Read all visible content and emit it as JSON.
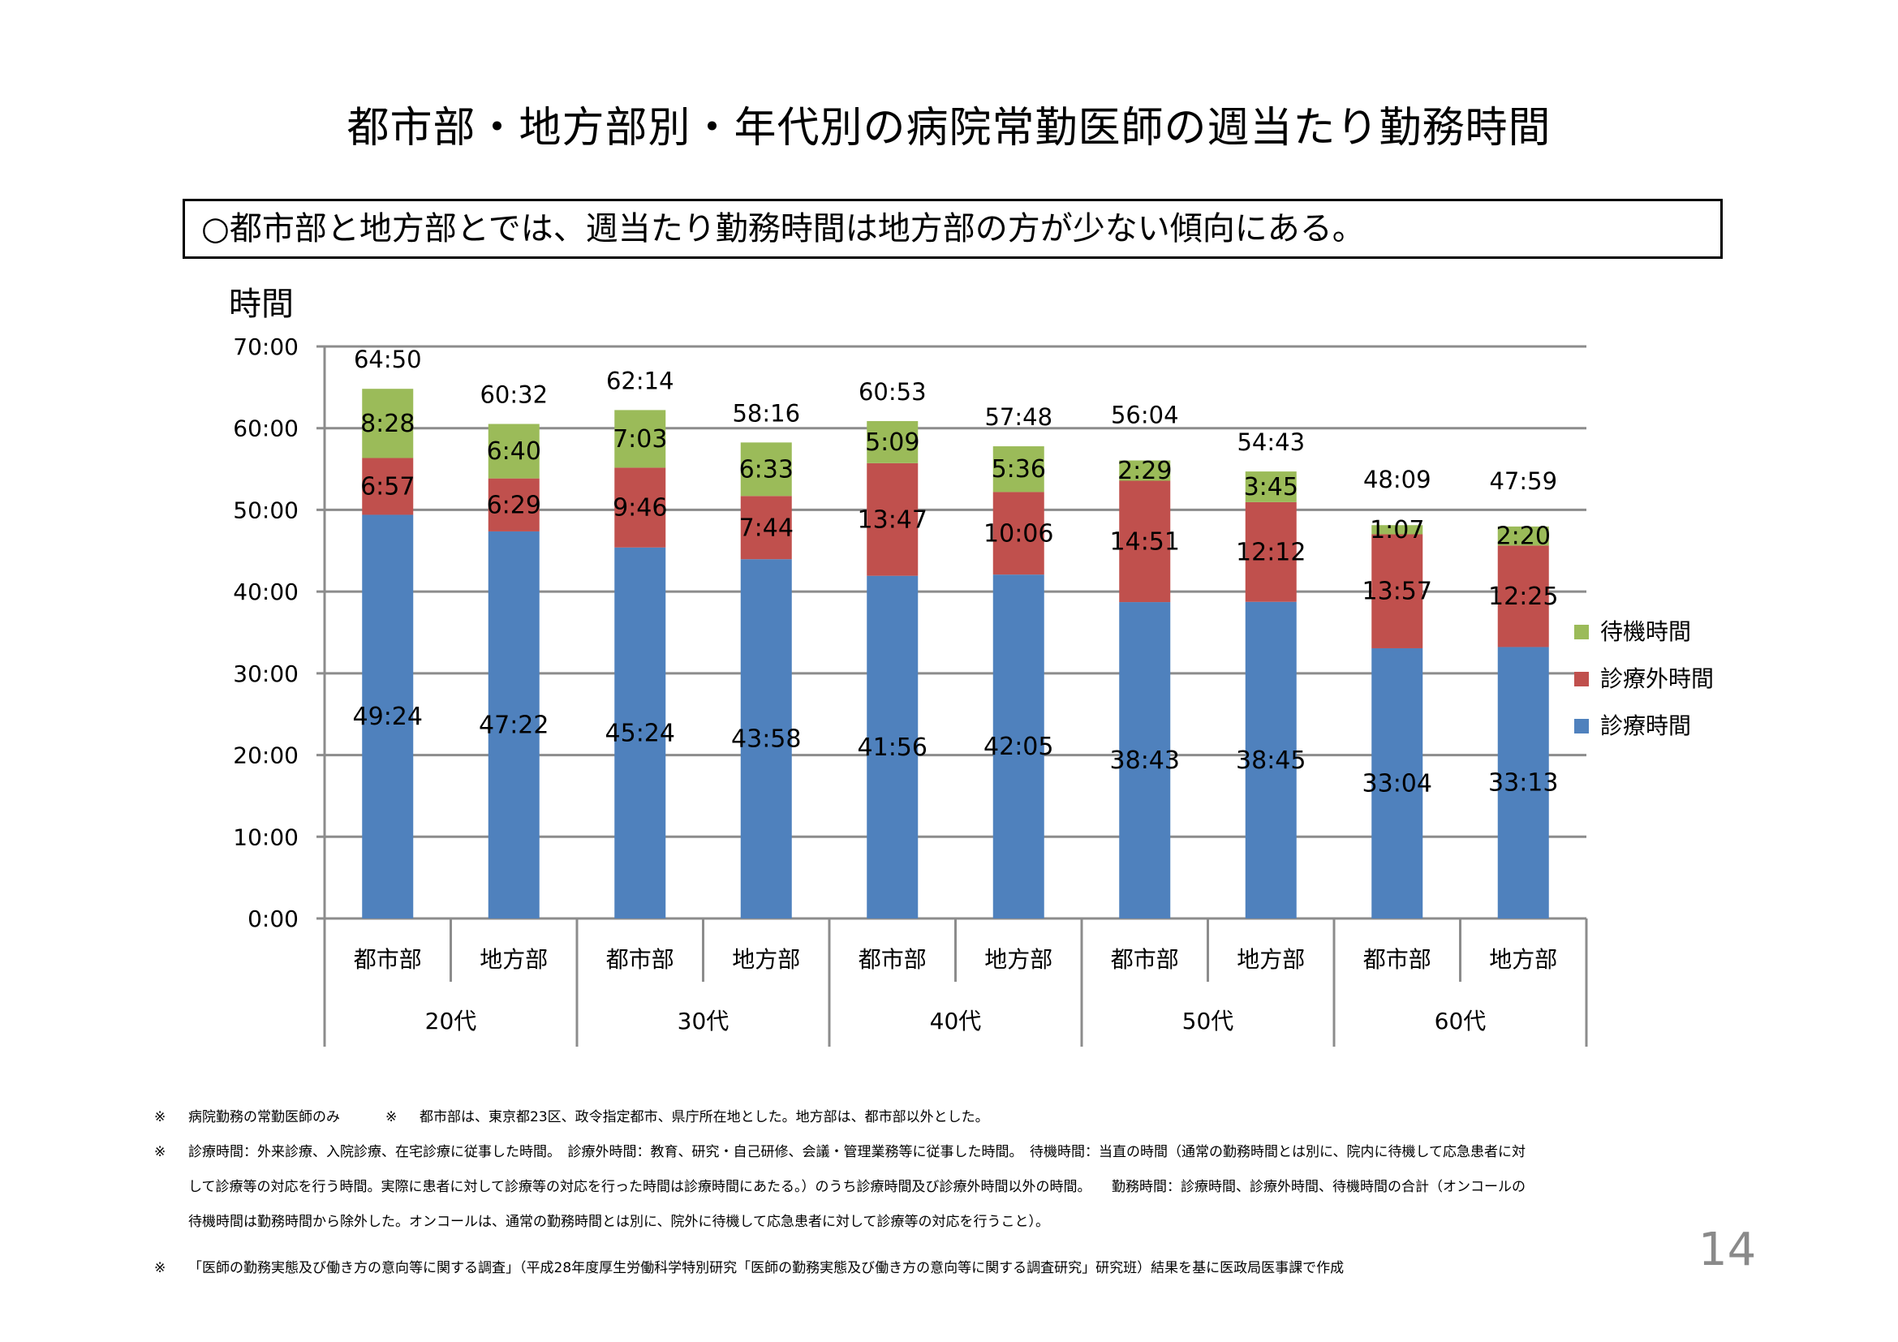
{
  "title": "都市部・地方部別・年代別の病院常勤医師の週当たり勤務時間",
  "summary": "○都市部と地方部とでは、週当たり勤務時間は地方部の方が少ない傾向にある。",
  "chart_data": {
    "type": "bar",
    "stacked": true,
    "ylabel": "時間",
    "yticks": [
      "0:00",
      "10:00",
      "20:00",
      "30:00",
      "40:00",
      "50:00",
      "60:00",
      "70:00"
    ],
    "ylim_minutes": [
      0,
      4200
    ],
    "grid": true,
    "legend_position": "right",
    "groups": [
      "20代",
      "30代",
      "40代",
      "50代",
      "60代"
    ],
    "categories": [
      "都市部",
      "地方部",
      "都市部",
      "地方部",
      "都市部",
      "地方部",
      "都市部",
      "地方部",
      "都市部",
      "地方部"
    ],
    "series": [
      {
        "name": "診療時間",
        "color": "#4f81bd",
        "labels": [
          "49:24",
          "47:22",
          "45:24",
          "43:58",
          "41:56",
          "42:05",
          "38:43",
          "38:45",
          "33:04",
          "33:13"
        ],
        "values_minutes": [
          2964,
          2842,
          2724,
          2638,
          2516,
          2525,
          2323,
          2325,
          1984,
          1993
        ]
      },
      {
        "name": "診療外時間",
        "color": "#c0504d",
        "labels": [
          "6:57",
          "6:29",
          "9:46",
          "7:44",
          "13:47",
          "10:06",
          "14:51",
          "12:12",
          "13:57",
          "12:25"
        ],
        "values_minutes": [
          417,
          389,
          586,
          464,
          827,
          606,
          891,
          732,
          837,
          745
        ]
      },
      {
        "name": "待機時間",
        "color": "#9bbb59",
        "labels": [
          "8:28",
          "6:40",
          "7:03",
          "6:33",
          "5:09",
          "5:36",
          "2:29",
          "3:45",
          "1:07",
          "2:20"
        ],
        "values_minutes": [
          508,
          400,
          423,
          393,
          309,
          336,
          149,
          225,
          67,
          140
        ]
      }
    ],
    "totals": [
      "64:50",
      "60:32",
      "62:14",
      "58:16",
      "60:53",
      "57:48",
      "56:04",
      "54:43",
      "48:09",
      "47:59"
    ],
    "legend_order": [
      "待機時間",
      "診療外時間",
      "診療時間"
    ]
  },
  "notes": {
    "line1_a": "病院勤務の常勤医師のみ",
    "line1_b": "都市部は、東京都23区、政令指定都市、県庁所在地とした。地方部は、都市部以外とした。",
    "line2": "診療時間：外来診療、入院診療、在宅診療に従事した時間。　診療外時間：教育、研究・自己研修、会議・管理業務等に従事した時間。　待機時間：当直の時間（通常の勤務時間とは別に、院内に待機して応急患者に対",
    "line3": "して診療等の対応を行う時間。実際に患者に対して診療等の対応を行った時間は診療時間にあたる。）のうち診療時間及び診療外時間以外の時間。　　勤務時間：診療時間、診療外時間、待機時間の合計（オンコールの",
    "line4": "待機時間は勤務時間から除外した。オンコールは、通常の勤務時間とは別に、院外に待機して応急患者に対して診療等の対応を行うこと）。",
    "line5": "「医師の勤務実態及び働き方の意向等に関する調査」（平成28年度厚生労働科学特別研究「医師の勤務実態及び働き方の意向等に関する調査研究」研究班）結果を基に医政局医事課で作成",
    "mark": "※"
  },
  "page_number": "14"
}
